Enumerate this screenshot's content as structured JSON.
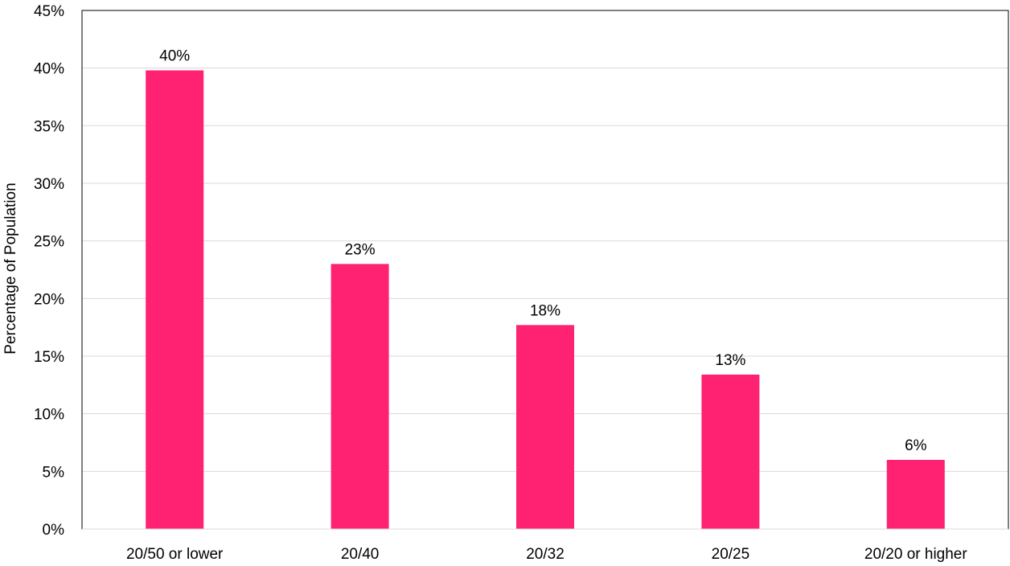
{
  "chart_data": {
    "type": "bar",
    "title": "",
    "xlabel": "",
    "ylabel": "Percentage of Population",
    "categories": [
      "20/50 or lower",
      "20/40",
      "20/32",
      "20/25",
      "20/20 or higher"
    ],
    "values": [
      39.8,
      23.0,
      17.7,
      13.4,
      6.0
    ],
    "data_labels": [
      "40%",
      "23%",
      "18%",
      "13%",
      "6%"
    ],
    "ylim": [
      0,
      45
    ],
    "y_tick_step": 5,
    "y_tick_labels": [
      "0%",
      "5%",
      "10%",
      "15%",
      "20%",
      "25%",
      "30%",
      "35%",
      "40%",
      "45%"
    ],
    "grid": true,
    "legend": "none",
    "bar_color": "#FF2272",
    "grid_color": "#D9D9D9",
    "axis_color": "#000000"
  }
}
